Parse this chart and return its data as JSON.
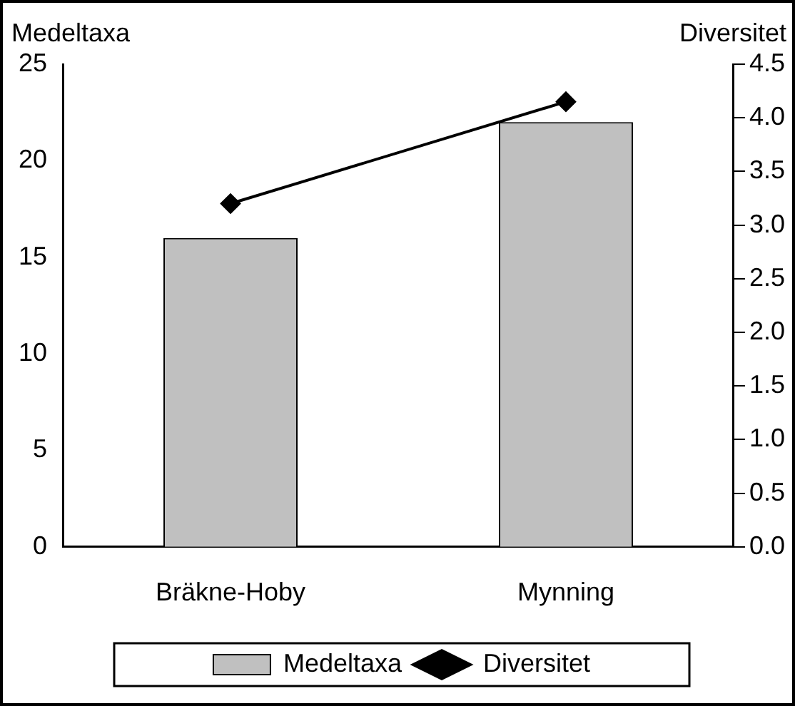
{
  "chart_data": {
    "type": "bar",
    "categories": [
      "Bräkne-Hoby",
      "Mynning"
    ],
    "ylabel": "Medeltaxa",
    "y2label": "Diversitet",
    "series": [
      {
        "name": "Medeltaxa",
        "color": "#c0c0c0",
        "values": [
          16,
          22
        ]
      },
      {
        "name": "Diversitet",
        "type": "line",
        "color": "#000000",
        "axis": "y2",
        "marker": "diamond",
        "values": [
          3.2,
          4.15
        ]
      }
    ],
    "ylim": [
      0,
      25
    ],
    "yticks": [
      0,
      5,
      10,
      15,
      20,
      25
    ],
    "y2lim": [
      0,
      4.5
    ],
    "y2ticks": [
      {
        "value": 0,
        "label": "0.0"
      },
      {
        "value": 0.5,
        "label": "0.5"
      },
      {
        "value": 1,
        "label": "1.0"
      },
      {
        "value": 1.5,
        "label": "1.5"
      },
      {
        "value": 2,
        "label": "2.0"
      },
      {
        "value": 2.5,
        "label": "2.5"
      },
      {
        "value": 3,
        "label": "3.0"
      },
      {
        "value": 3.5,
        "label": "3.5"
      },
      {
        "value": 4,
        "label": "4.0"
      },
      {
        "value": 4.5,
        "label": "4.5"
      }
    ],
    "grid": false,
    "legend": "bottom"
  }
}
